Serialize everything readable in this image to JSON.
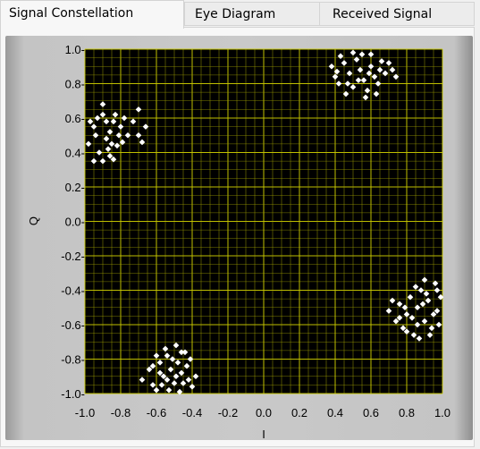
{
  "tabs": [
    {
      "label": "Signal Constellation",
      "active": true
    },
    {
      "label": "Eye Diagram",
      "active": false
    },
    {
      "label": "Received Signal",
      "active": false
    }
  ],
  "colors": {
    "plot_background": "#000000",
    "grid": "#a8a800",
    "points": "#ffffff"
  },
  "chart_data": {
    "type": "scatter",
    "title": "",
    "xlabel": "I",
    "ylabel": "Q",
    "xlim": [
      -1.0,
      1.0
    ],
    "ylim": [
      -1.0,
      1.0
    ],
    "x_ticks": [
      "-1.0",
      "-0.8",
      "-0.6",
      "-0.4",
      "-0.2",
      "0.0",
      "0.2",
      "0.4",
      "0.6",
      "0.8",
      "1.0"
    ],
    "y_ticks": [
      "1.0-",
      "0.8-",
      "0.6-",
      "0.4-",
      "0.2-",
      "0.0-",
      "-0.2-",
      "-0.4-",
      "-0.6-",
      "-0.8-",
      "-1.0-"
    ],
    "grid": true,
    "clusters": [
      {
        "center": [
          -0.87,
          0.5
        ],
        "spread": 0.1,
        "points": [
          [
            -0.98,
            0.45
          ],
          [
            -0.95,
            0.55
          ],
          [
            -0.93,
            0.6
          ],
          [
            -0.9,
            0.68
          ],
          [
            -0.88,
            0.48
          ],
          [
            -0.86,
            0.52
          ],
          [
            -0.84,
            0.58
          ],
          [
            -0.82,
            0.44
          ],
          [
            -0.8,
            0.55
          ],
          [
            -0.78,
            0.6
          ],
          [
            -0.92,
            0.4
          ],
          [
            -0.9,
            0.35
          ],
          [
            -0.86,
            0.38
          ],
          [
            -0.83,
            0.62
          ],
          [
            -0.76,
            0.5
          ],
          [
            -0.73,
            0.58
          ],
          [
            -0.7,
            0.65
          ],
          [
            -0.7,
            0.5
          ],
          [
            -0.68,
            0.46
          ],
          [
            -0.66,
            0.55
          ],
          [
            -0.95,
            0.35
          ],
          [
            -0.88,
            0.58
          ],
          [
            -0.85,
            0.45
          ],
          [
            -0.81,
            0.5
          ],
          [
            -0.94,
            0.5
          ],
          [
            -0.9,
            0.62
          ],
          [
            -0.87,
            0.42
          ],
          [
            -0.79,
            0.46
          ],
          [
            -0.97,
            0.58
          ],
          [
            -0.84,
            0.36
          ]
        ]
      },
      {
        "center": [
          0.52,
          0.85
        ],
        "spread": 0.09,
        "points": [
          [
            0.38,
            0.9
          ],
          [
            0.4,
            0.84
          ],
          [
            0.42,
            0.8
          ],
          [
            0.45,
            0.92
          ],
          [
            0.48,
            0.86
          ],
          [
            0.5,
            0.78
          ],
          [
            0.52,
            0.94
          ],
          [
            0.54,
            0.88
          ],
          [
            0.56,
            0.82
          ],
          [
            0.58,
            0.76
          ],
          [
            0.6,
            0.9
          ],
          [
            0.62,
            0.84
          ],
          [
            0.64,
            0.8
          ],
          [
            0.66,
            0.93
          ],
          [
            0.68,
            0.86
          ],
          [
            0.72,
            0.88
          ],
          [
            0.74,
            0.84
          ],
          [
            0.46,
            0.74
          ],
          [
            0.5,
            0.98
          ],
          [
            0.55,
            0.97
          ],
          [
            0.6,
            0.97
          ],
          [
            0.43,
            0.96
          ],
          [
            0.57,
            0.72
          ],
          [
            0.63,
            0.74
          ],
          [
            0.7,
            0.92
          ],
          [
            0.47,
            0.8
          ],
          [
            0.53,
            0.82
          ],
          [
            0.59,
            0.86
          ],
          [
            0.65,
            0.88
          ],
          [
            0.41,
            0.87
          ]
        ]
      },
      {
        "center": [
          -0.5,
          -0.88
        ],
        "spread": 0.09,
        "points": [
          [
            -0.68,
            -0.92
          ],
          [
            -0.64,
            -0.86
          ],
          [
            -0.62,
            -0.95
          ],
          [
            -0.58,
            -0.82
          ],
          [
            -0.56,
            -0.9
          ],
          [
            -0.54,
            -0.78
          ],
          [
            -0.52,
            -0.86
          ],
          [
            -0.5,
            -0.94
          ],
          [
            -0.48,
            -0.82
          ],
          [
            -0.46,
            -0.88
          ],
          [
            -0.44,
            -0.76
          ],
          [
            -0.42,
            -0.92
          ],
          [
            -0.4,
            -0.96
          ],
          [
            -0.38,
            -0.9
          ],
          [
            -0.55,
            -0.74
          ],
          [
            -0.49,
            -0.72
          ],
          [
            -0.6,
            -0.98
          ],
          [
            -0.53,
            -0.98
          ],
          [
            -0.47,
            -0.99
          ],
          [
            -0.43,
            -0.84
          ],
          [
            -0.58,
            -0.88
          ],
          [
            -0.51,
            -0.8
          ],
          [
            -0.45,
            -0.94
          ],
          [
            -0.57,
            -0.95
          ],
          [
            -0.41,
            -0.8
          ],
          [
            -0.62,
            -0.84
          ],
          [
            -0.49,
            -0.9
          ],
          [
            -0.54,
            -0.92
          ],
          [
            -0.46,
            -0.76
          ],
          [
            -0.6,
            -0.78
          ]
        ]
      },
      {
        "center": [
          0.88,
          -0.52
        ],
        "spread": 0.09,
        "points": [
          [
            0.7,
            -0.52
          ],
          [
            0.74,
            -0.58
          ],
          [
            0.76,
            -0.48
          ],
          [
            0.78,
            -0.62
          ],
          [
            0.8,
            -0.54
          ],
          [
            0.82,
            -0.44
          ],
          [
            0.84,
            -0.66
          ],
          [
            0.86,
            -0.5
          ],
          [
            0.88,
            -0.4
          ],
          [
            0.9,
            -0.58
          ],
          [
            0.92,
            -0.46
          ],
          [
            0.94,
            -0.62
          ],
          [
            0.96,
            -0.36
          ],
          [
            0.97,
            -0.52
          ],
          [
            0.99,
            -0.44
          ],
          [
            0.85,
            -0.38
          ],
          [
            0.9,
            -0.34
          ],
          [
            0.8,
            -0.64
          ],
          [
            0.87,
            -0.68
          ],
          [
            0.93,
            -0.66
          ],
          [
            0.98,
            -0.6
          ],
          [
            0.72,
            -0.46
          ],
          [
            0.83,
            -0.56
          ],
          [
            0.89,
            -0.48
          ],
          [
            0.95,
            -0.54
          ],
          [
            0.79,
            -0.5
          ],
          [
            0.91,
            -0.42
          ],
          [
            0.86,
            -0.6
          ],
          [
            0.76,
            -0.56
          ],
          [
            0.97,
            -0.4
          ]
        ]
      }
    ]
  }
}
